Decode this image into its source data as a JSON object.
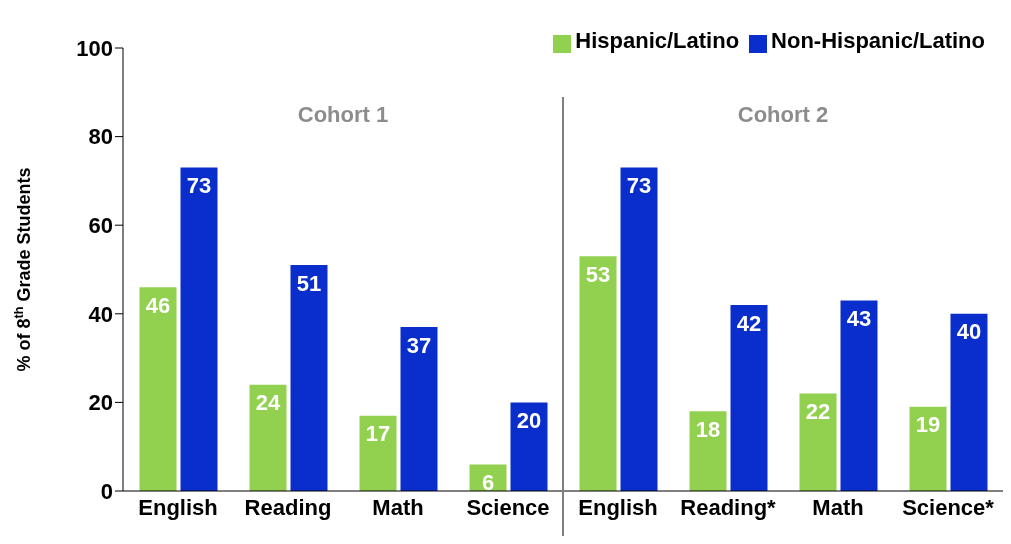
{
  "chart_data": {
    "type": "bar",
    "ylabel": "% of 8$^{th}$ Grade  Students",
    "categories": [
      "English",
      "Reading",
      "Math",
      "Science",
      "English",
      "Reading*",
      "Math",
      "Science*"
    ],
    "series": [
      {
        "name": "Hispanic/Latino",
        "color": "#92d050",
        "values": [
          46,
          24,
          17,
          6,
          53,
          18,
          22,
          19
        ]
      },
      {
        "name": "Non-Hispanic/Latino",
        "color": "#0a2ecc",
        "values": [
          73,
          51,
          37,
          20,
          73,
          42,
          43,
          40
        ]
      }
    ],
    "ylim": [
      0,
      100
    ],
    "yticks": [
      0,
      20,
      40,
      60,
      80,
      100
    ],
    "legend": "top right",
    "data_labels": true,
    "annotations": [
      "Cohort 1",
      "Cohort 2"
    ]
  }
}
